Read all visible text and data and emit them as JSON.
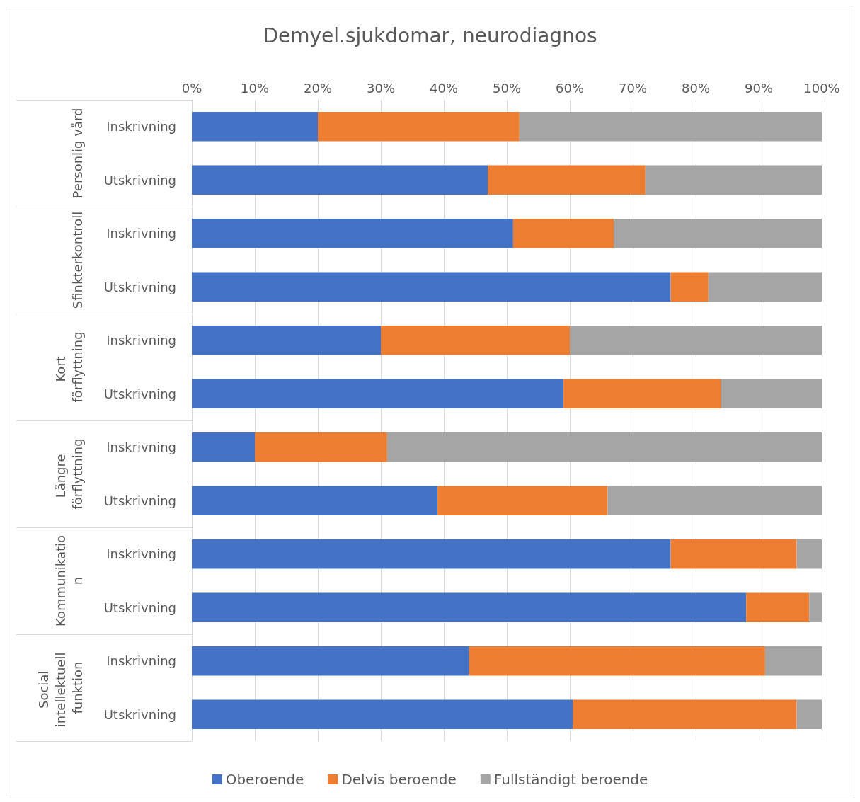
{
  "chart_data": {
    "type": "bar",
    "orientation": "horizontal",
    "stacked": true,
    "title": "Demyel.sjukdomar, neurodiagnos",
    "categories": [
      "Inskrivning",
      "Utskrivning",
      "Inskrivning",
      "Utskrivning",
      "Inskrivning",
      "Utskrivning",
      "Inskrivning",
      "Utskrivning",
      "Inskrivning",
      "Utskrivning",
      "Inskrivning",
      "Utskrivning"
    ],
    "annotations": [
      "Personlig vård",
      "Sfinkterkontroll",
      "Kort förflyttning",
      "Längre förflyttning",
      "Kommunikation",
      "Social intellektuell funktion"
    ],
    "series": [
      {
        "name": "Oberoende",
        "color": "#4472c4",
        "values": [
          20,
          47,
          51,
          76,
          30,
          59,
          10,
          39,
          76,
          88,
          44,
          60.5
        ]
      },
      {
        "name": "Delvis beroende",
        "color": "#ed7d31",
        "values": [
          32,
          25,
          16,
          6,
          30,
          25,
          21,
          27,
          20,
          10,
          47,
          35.5
        ]
      },
      {
        "name": "Fullständigt beroende",
        "color": "#a5a5a5",
        "values": [
          48,
          28,
          33,
          18,
          40,
          16,
          69,
          34,
          4,
          2,
          9,
          4
        ]
      }
    ],
    "xlim": [
      0,
      100
    ],
    "xticks": [
      {
        "value": 0,
        "label": "0%"
      },
      {
        "value": 10,
        "label": "10%"
      },
      {
        "value": 20,
        "label": "20%"
      },
      {
        "value": 30,
        "label": "30%"
      },
      {
        "value": 40,
        "label": "40%"
      },
      {
        "value": 50,
        "label": "50%"
      },
      {
        "value": 60,
        "label": "60%"
      },
      {
        "value": 70,
        "label": "70%"
      },
      {
        "value": 80,
        "label": "80%"
      },
      {
        "value": 90,
        "label": "90%"
      },
      {
        "value": 100,
        "label": "100%"
      }
    ],
    "grid": "x",
    "legend": "bottom"
  }
}
